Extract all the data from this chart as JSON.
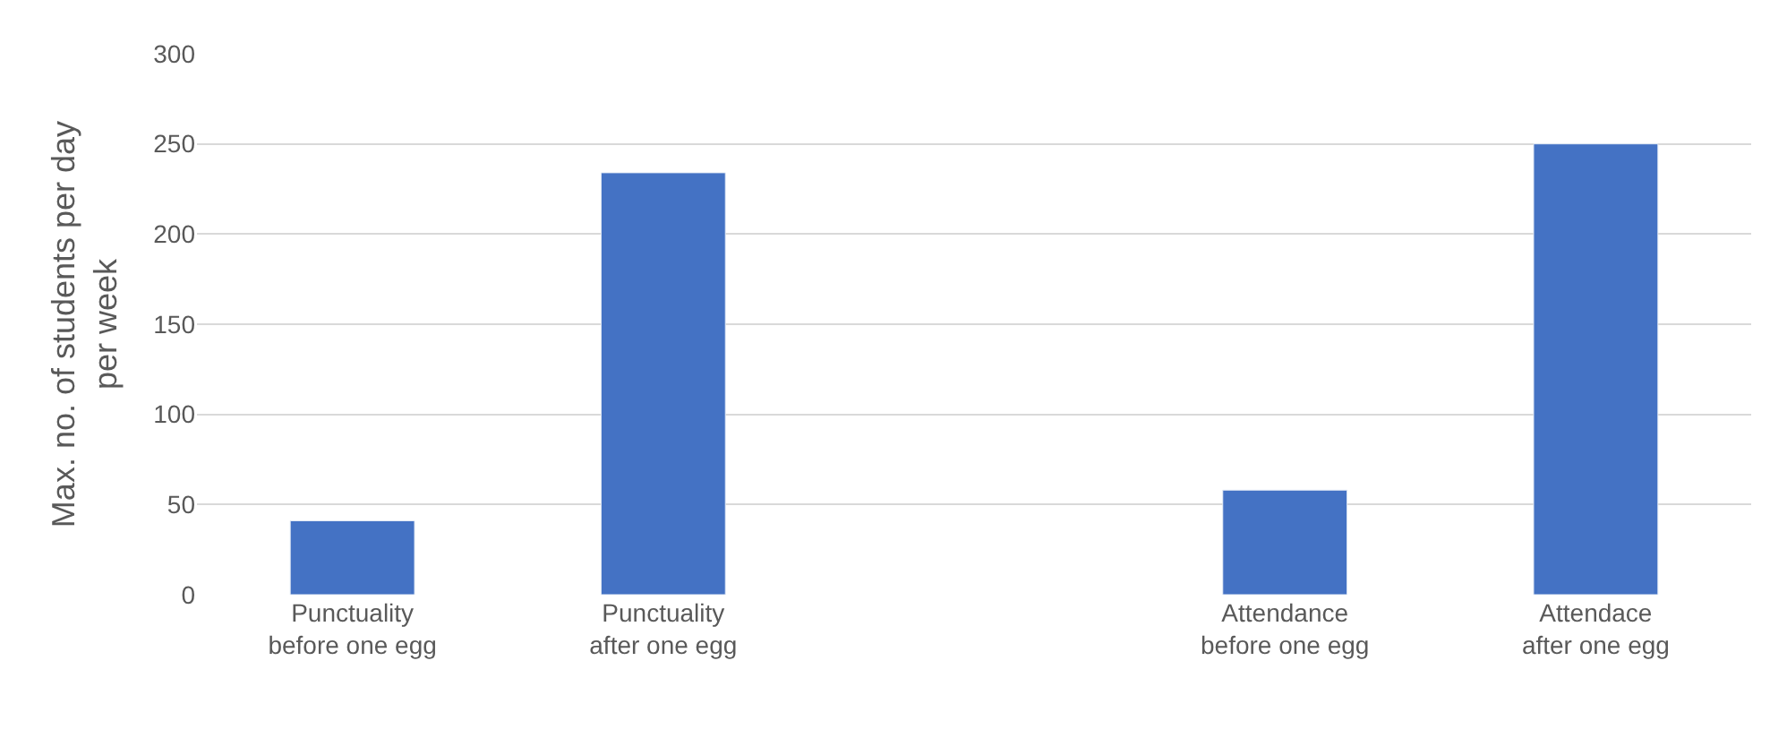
{
  "chart_data": {
    "type": "bar",
    "categories": [
      "Punctuality before one egg",
      "Punctuality  after one egg",
      null,
      "Attendance before one egg",
      "Attendace after one egg"
    ],
    "values": [
      41,
      234,
      null,
      58,
      250
    ],
    "color": "#4472c4",
    "ylabel": "Max. no. of students per day per week",
    "ylim": [
      0,
      300
    ],
    "yticks": [
      0,
      50,
      100,
      150,
      200,
      250,
      300
    ],
    "grid": "y",
    "legend": false
  }
}
